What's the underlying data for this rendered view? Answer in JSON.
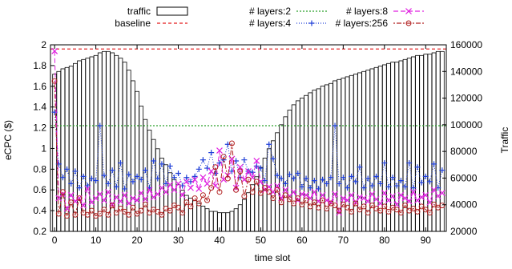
{
  "chart_data": {
    "type": "bar",
    "xlabel": "time slot",
    "ylabel": "eCPC ($)",
    "y2label": "Traffic",
    "xlim": [
      -1,
      95
    ],
    "ylim": [
      0.2,
      2.0
    ],
    "y2lim": [
      20000,
      160000
    ],
    "xticks": [
      "0",
      "10",
      "20",
      "30",
      "40",
      "50",
      "60",
      "70",
      "80",
      "90"
    ],
    "yticks": [
      "0.2",
      "0.4",
      "0.6",
      "0.8",
      "1",
      "1.2",
      "1.4",
      "1.6",
      "1.8",
      "2"
    ],
    "y2ticks": [
      "20000",
      "40000",
      "60000",
      "80000",
      "100000",
      "120000",
      "140000",
      "160000"
    ],
    "grid": false,
    "legend_position": "top",
    "legend": [
      {
        "label": "traffic",
        "style": "bar"
      },
      {
        "label": "baseline",
        "style": "line",
        "color": "#e41a1c",
        "dash": "4,3"
      },
      {
        "label": "# layers:2",
        "style": "line",
        "color": "#2ca02c",
        "dash": "2,2"
      },
      {
        "label": "# layers:4",
        "style": "line-marker",
        "color": "#1f3fd8",
        "dash": "1,2",
        "marker": "plus"
      },
      {
        "label": "# layers:8",
        "style": "line-marker",
        "color": "#e020e0",
        "dash": "6,3",
        "marker": "cross"
      },
      {
        "label": "# layers:256",
        "style": "line-marker",
        "color": "#b22222",
        "dash": "2,2,6,2",
        "marker": "circle"
      }
    ],
    "traffic": {
      "name": "traffic",
      "x": [
        0,
        1,
        2,
        3,
        4,
        5,
        6,
        7,
        8,
        9,
        10,
        11,
        12,
        13,
        14,
        15,
        16,
        17,
        18,
        19,
        20,
        21,
        22,
        23,
        24,
        25,
        26,
        27,
        28,
        29,
        30,
        31,
        32,
        33,
        34,
        35,
        36,
        37,
        38,
        39,
        40,
        41,
        42,
        43,
        44,
        45,
        46,
        47,
        48,
        49,
        50,
        51,
        52,
        53,
        54,
        55,
        56,
        57,
        58,
        59,
        60,
        61,
        62,
        63,
        64,
        65,
        66,
        67,
        68,
        69,
        70,
        71,
        72,
        73,
        74,
        75,
        76,
        77,
        78,
        79,
        80,
        81,
        82,
        83,
        84,
        85,
        86,
        87,
        88,
        89,
        90,
        91,
        92,
        93,
        94
      ],
      "values": [
        138000,
        140000,
        142000,
        143000,
        144000,
        146000,
        148000,
        149000,
        150000,
        151000,
        152000,
        154000,
        155000,
        155000,
        154000,
        152000,
        150000,
        147000,
        141000,
        133000,
        125000,
        114000,
        104000,
        96000,
        89000,
        82000,
        75000,
        70000,
        64000,
        59000,
        55000,
        51000,
        47000,
        45000,
        43000,
        41000,
        39000,
        37000,
        35000,
        35000,
        34000,
        34000,
        34000,
        35000,
        37000,
        40000,
        44000,
        49000,
        55000,
        61000,
        68000,
        75000,
        82000,
        88000,
        94000,
        100000,
        106000,
        111000,
        115000,
        118000,
        120000,
        122000,
        124000,
        126000,
        127000,
        129000,
        130000,
        131000,
        133000,
        134000,
        135000,
        136000,
        137000,
        138000,
        139000,
        140000,
        141000,
        142000,
        143000,
        144000,
        145000,
        146000,
        147000,
        147000,
        148000,
        149000,
        150000,
        151000,
        152000,
        152000,
        153000,
        153000,
        154000,
        155000,
        155000
      ]
    },
    "series": [
      {
        "name": "baseline",
        "constant": 1.96
      },
      {
        "name": "# layers:2",
        "constant": 1.22
      },
      {
        "name": "# layers:4",
        "values": [
          1.35,
          0.85,
          0.72,
          0.8,
          0.66,
          0.78,
          0.62,
          0.73,
          0.64,
          0.71,
          0.69,
          1.22,
          0.74,
          0.66,
          0.79,
          0.63,
          0.86,
          0.61,
          0.75,
          0.68,
          0.73,
          0.7,
          0.79,
          0.62,
          0.88,
          0.71,
          0.85,
          0.66,
          0.83,
          0.72,
          0.76,
          0.64,
          0.72,
          0.68,
          0.73,
          0.8,
          0.89,
          0.81,
          0.96,
          0.76,
          0.86,
          0.89,
          1.04,
          0.78,
          0.88,
          0.72,
          0.89,
          0.78,
          0.77,
          0.83,
          0.81,
          0.69,
          1.04,
          0.9,
          0.74,
          0.71,
          0.66,
          0.75,
          0.71,
          0.76,
          0.63,
          0.71,
          0.62,
          0.69,
          0.61,
          0.7,
          0.66,
          0.72,
          1.22,
          0.66,
          0.72,
          0.62,
          0.73,
          0.68,
          0.82,
          0.62,
          0.71,
          0.64,
          0.73,
          0.66,
          0.86,
          0.63,
          0.72,
          0.64,
          0.69,
          0.63,
          0.86,
          0.62,
          0.82,
          0.67,
          0.73,
          0.68,
          0.85,
          0.62,
          0.79
        ]
      },
      {
        "name": "# layers:8",
        "values": [
          1.94,
          0.52,
          0.56,
          0.42,
          0.55,
          0.49,
          0.52,
          0.45,
          0.61,
          0.48,
          0.52,
          0.56,
          0.5,
          0.58,
          0.46,
          0.53,
          0.49,
          0.55,
          0.47,
          0.52,
          0.5,
          0.57,
          0.51,
          0.6,
          0.53,
          0.56,
          0.62,
          0.58,
          0.65,
          0.6,
          0.66,
          0.55,
          0.68,
          0.62,
          0.7,
          0.61,
          0.72,
          0.66,
          0.78,
          0.64,
          0.98,
          0.7,
          0.74,
          0.9,
          0.62,
          0.82,
          0.7,
          0.78,
          0.72,
          0.88,
          0.68,
          0.6,
          0.63,
          0.58,
          0.64,
          0.52,
          0.6,
          0.54,
          0.58,
          0.5,
          0.56,
          0.55,
          0.52,
          0.58,
          0.49,
          0.55,
          0.5,
          0.48,
          0.56,
          0.38,
          0.52,
          0.5,
          0.55,
          0.48,
          0.53,
          0.52,
          0.49,
          0.56,
          0.51,
          0.47,
          0.57,
          0.5,
          0.54,
          0.46,
          0.55,
          0.52,
          0.49,
          0.58,
          0.5,
          0.53,
          0.55,
          0.48,
          0.6,
          0.54,
          0.57
        ]
      },
      {
        "name": "# layers:256",
        "values": [
          1.65,
          0.37,
          0.58,
          0.35,
          0.48,
          0.36,
          0.52,
          0.38,
          0.36,
          0.4,
          0.35,
          0.37,
          0.41,
          0.36,
          0.45,
          0.38,
          0.42,
          0.39,
          0.36,
          0.43,
          0.37,
          0.4,
          0.46,
          0.38,
          0.41,
          0.39,
          0.36,
          0.42,
          0.4,
          0.45,
          0.43,
          0.38,
          0.48,
          0.44,
          0.52,
          0.47,
          0.55,
          0.5,
          0.62,
          0.82,
          0.58,
          0.92,
          0.71,
          1.05,
          0.6,
          0.78,
          0.54,
          0.7,
          0.58,
          0.68,
          0.57,
          0.62,
          0.58,
          0.52,
          0.6,
          0.48,
          0.55,
          0.51,
          0.47,
          0.52,
          0.46,
          0.5,
          0.44,
          0.48,
          0.43,
          0.5,
          0.42,
          0.47,
          0.45,
          0.4,
          0.46,
          0.43,
          0.39,
          0.47,
          0.41,
          0.44,
          0.38,
          0.45,
          0.42,
          0.4,
          0.44,
          0.39,
          0.43,
          0.41,
          0.38,
          0.45,
          0.4,
          0.42,
          0.39,
          0.44,
          0.41,
          0.38,
          0.46,
          0.43,
          0.45
        ]
      }
    ]
  }
}
